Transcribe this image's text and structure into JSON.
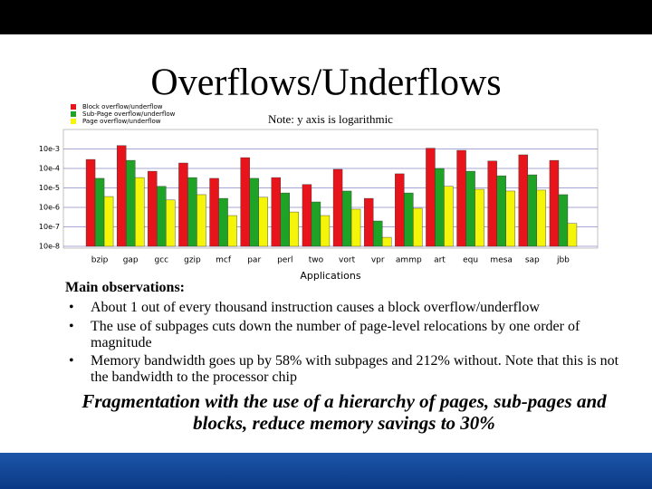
{
  "chart_data": {
    "type": "bar",
    "title": "Overflows/Underflows",
    "note": "Note: y axis is logarithmic",
    "x_label": "Applications",
    "categories": [
      "bzip",
      "gap",
      "gcc",
      "gzip",
      "mcf",
      "par",
      "perl",
      "two",
      "vort",
      "vpr",
      "ammp",
      "art",
      "equ",
      "mesa",
      "sap",
      "jbb"
    ],
    "series": [
      {
        "name": "Block overflow/underflow",
        "color": "#e8141b",
        "values": [
          0.00029,
          0.0015,
          7.2e-05,
          0.00019,
          3.1e-05,
          0.00036,
          3.4e-05,
          1.5e-05,
          9e-05,
          2.9e-06,
          5.3e-05,
          0.0011,
          0.00085,
          0.00024,
          0.0005,
          0.00026
        ]
      },
      {
        "name": "Sub-Page overflow/underflow",
        "color": "#1fa326",
        "values": [
          3.1e-05,
          0.00026,
          1.2e-05,
          3.4e-05,
          2.9e-06,
          3.1e-05,
          5.5e-06,
          1.9e-06,
          6.9e-06,
          2e-07,
          5.5e-06,
          0.0001,
          7.2e-05,
          4.2e-05,
          4.7e-05,
          4.5e-06
        ]
      },
      {
        "name": "Page overflow/underflow",
        "color": "#f5f50a",
        "values": [
          3.6e-06,
          3.4e-05,
          2.4e-06,
          4.5e-06,
          3.8e-07,
          3.3e-06,
          5.8e-07,
          3.8e-07,
          8.1e-07,
          2.9e-08,
          9e-07,
          1.2e-05,
          8.5e-06,
          6.9e-06,
          7.7e-06,
          1.5e-07
        ]
      }
    ],
    "log_scale": true,
    "grid": true,
    "ylim": [
      1e-08,
      0.01
    ],
    "yticks": [
      {
        "value": 0.001,
        "label": "10e-3"
      },
      {
        "value": 0.0001,
        "label": "10e-4"
      },
      {
        "value": 1e-05,
        "label": "10e-5"
      },
      {
        "value": 1e-06,
        "label": "10e-6"
      },
      {
        "value": 1e-07,
        "label": "10e-7"
      },
      {
        "value": 1e-08,
        "label": "10e-8"
      }
    ]
  },
  "observations": {
    "heading": "Main observations:",
    "bullets": [
      "About 1 out of every thousand instruction causes a block overflow/underflow",
      "The use of subpages cuts down the number of page-level relocations by one order of magnitude",
      "Memory bandwidth goes up by 58% with subpages and 212% without. Note that this is not the bandwidth to the processor chip"
    ],
    "bullet_symbol": "•"
  },
  "conclusion": "Fragmentation with the use of a hierarchy of pages, sub-pages and blocks, reduce memory savings to 30%"
}
